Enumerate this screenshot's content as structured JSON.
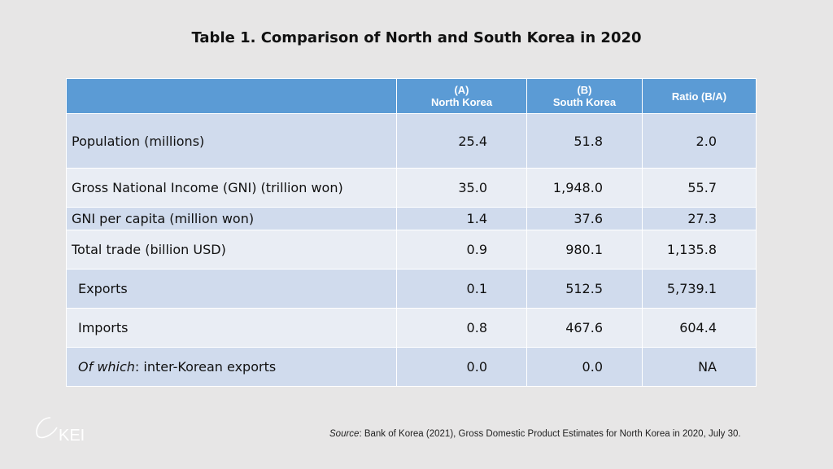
{
  "title": "Table 1. Comparison of North and South Korea in 2020",
  "table": {
    "headers": [
      {
        "line1": "",
        "line2": ""
      },
      {
        "line1": "(A)",
        "line2": "North Korea"
      },
      {
        "line1": "(B)",
        "line2": "South Korea"
      },
      {
        "line1": "Ratio (B/A)",
        "line2": ""
      }
    ],
    "rows": [
      {
        "label": "Population (millions)",
        "a": "25.4",
        "b": "51.8",
        "ratio": "2.0"
      },
      {
        "label": "Gross National Income (GNI) (trillion won)",
        "a": "35.0",
        "b": "1,948.0",
        "ratio": "55.7"
      },
      {
        "label": "GNI per capita (million won)",
        "a": "1.4",
        "b": "37.6",
        "ratio": "27.3"
      },
      {
        "label": "Total trade (billion USD)",
        "a": "0.9",
        "b": "980.1",
        "ratio": "1,135.8"
      },
      {
        "label": "Exports",
        "a": "0.1",
        "b": "512.5",
        "ratio": "5,739.1"
      },
      {
        "label": "Imports",
        "a": "0.8",
        "b": "467.6",
        "ratio": "604.4"
      },
      {
        "label_italic": "Of which",
        "label": ": inter-Korean exports",
        "a": "0.0",
        "b": "0.0",
        "ratio": "NA"
      }
    ]
  },
  "source": {
    "label": "Source",
    "text": ": Bank of Korea (2021), Gross Domestic Product Estimates for North Korea in 2020, July 30."
  },
  "logo": "KEI",
  "colors": {
    "header": "#5b9bd5",
    "row_dark": "#d0dbed",
    "row_light": "#e9edf4",
    "background": "#e7e6e6"
  }
}
